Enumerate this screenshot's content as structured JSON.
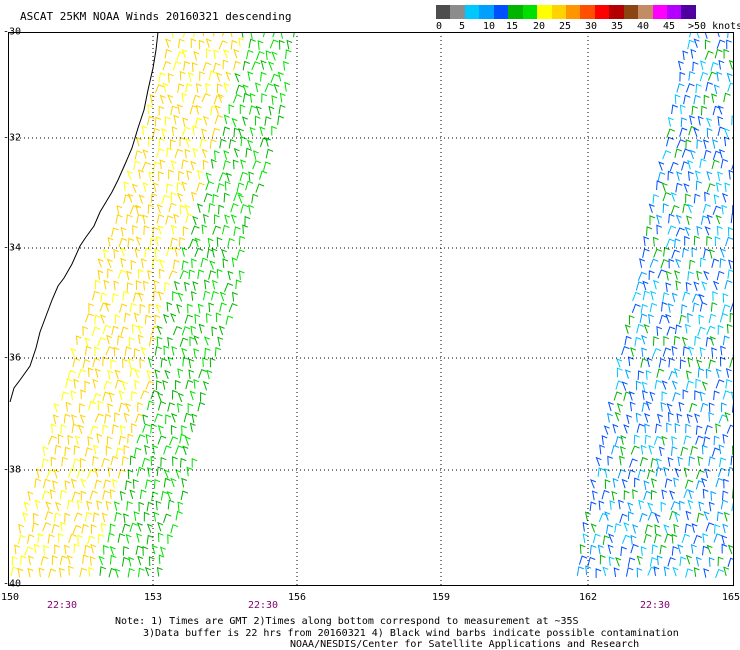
{
  "title": "ASCAT 25KM NOAA Winds 20160321 descending",
  "legend": {
    "colors": [
      "#4d4d4d",
      "#8c8c8c",
      "#00c8ff",
      "#00a0ff",
      "#0050ff",
      "#00b400",
      "#00e000",
      "#ffff00",
      "#ffd200",
      "#ff9600",
      "#ff5000",
      "#ff0000",
      "#b40000",
      "#8b4513",
      "#c48c64",
      "#ff00ff",
      "#b400ff",
      "#5000a0"
    ],
    "labels": [
      "0",
      "5",
      "10",
      "15",
      "20",
      "25",
      "30",
      "35",
      "40",
      "45",
      ">50 knots"
    ]
  },
  "map": {
    "lat_labels": [
      "-30",
      "-32",
      "-34",
      "-36",
      "-38",
      "-40"
    ],
    "lon_labels": [
      "150",
      "153",
      "156",
      "159",
      "162",
      "165"
    ],
    "time_labels": [
      "22:30",
      "22:30",
      "22:30"
    ]
  },
  "notes": {
    "line1": "Note: 1) Times are GMT 2)Times along bottom correspond to measurement at ~35S",
    "line2": "3)Data buffer is 22 hrs from 20160321 4) Black wind barbs indicate possible contamination",
    "line3": "NOAA/NESDIS/Center for Satellite Applications and Research"
  }
}
